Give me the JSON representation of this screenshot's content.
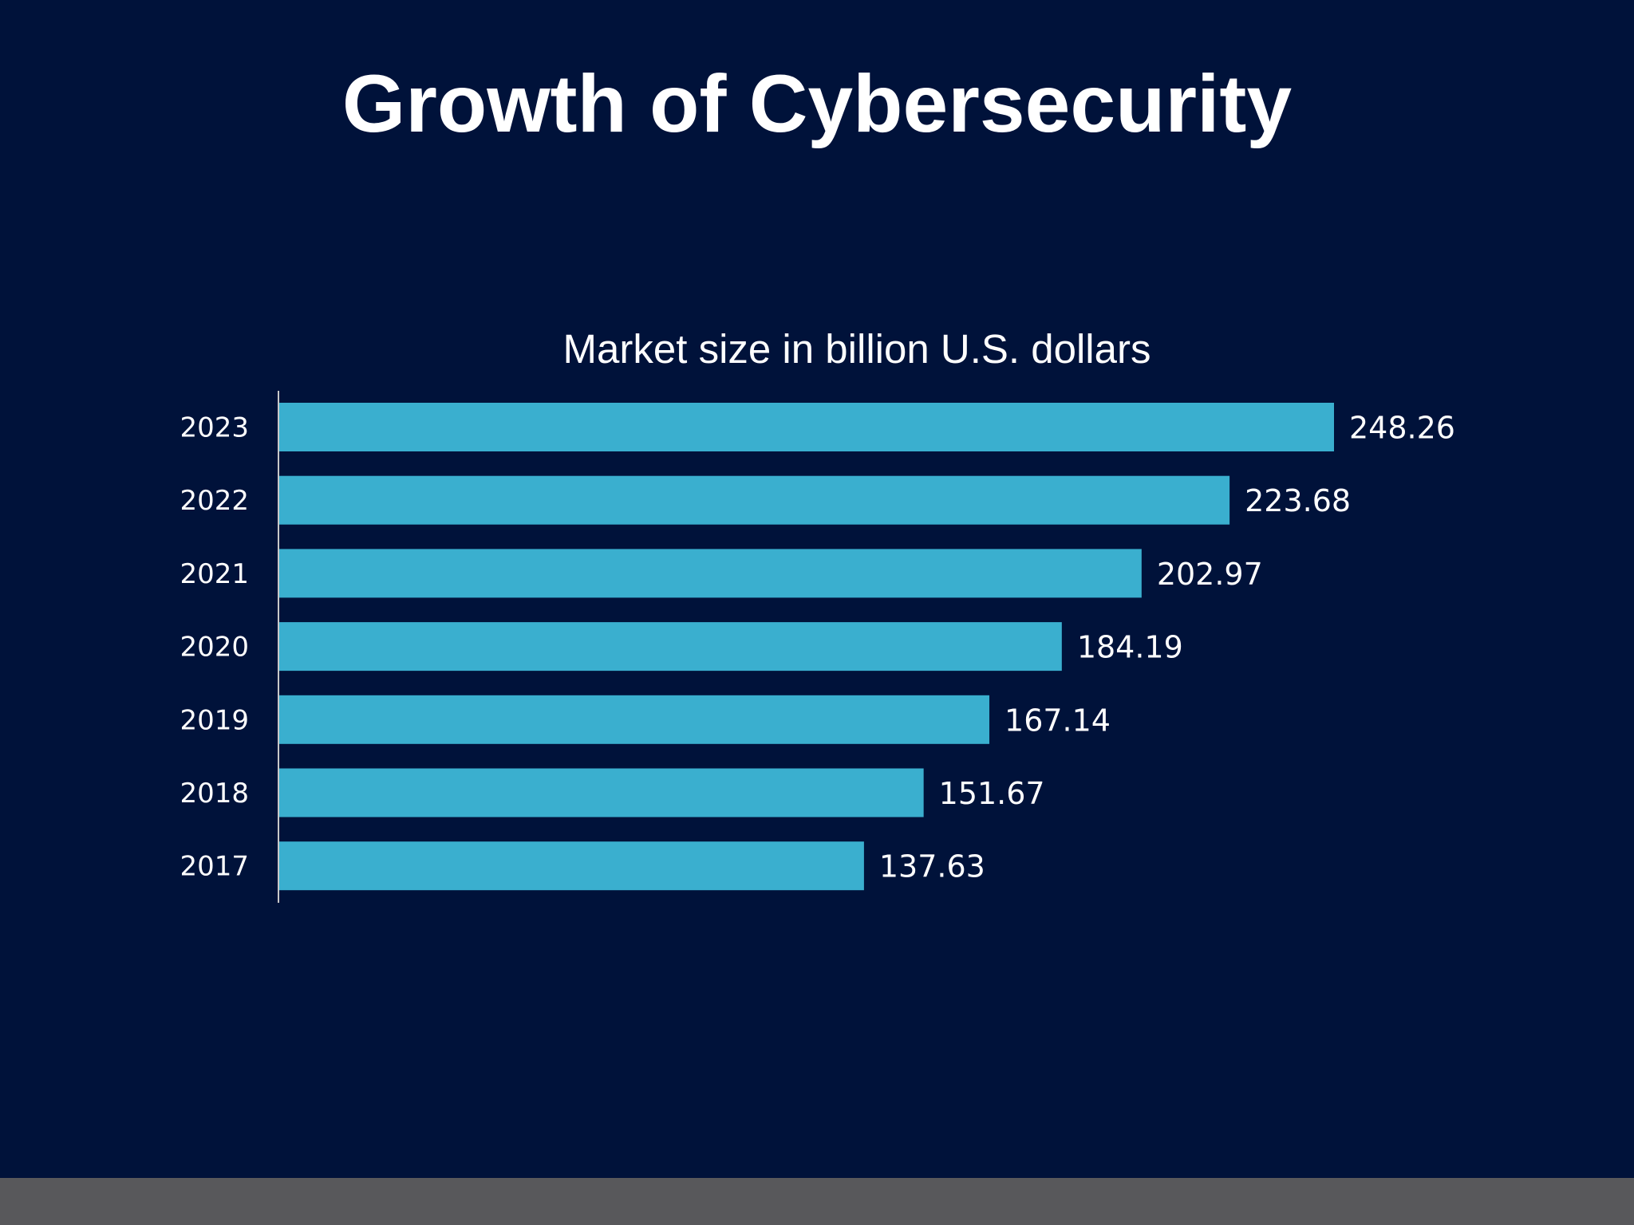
{
  "slide": {
    "title": "Growth of Cybersecurity"
  },
  "colors": {
    "background": "#00123a",
    "bar": "#3aafcf",
    "text": "#ffffff",
    "axis": "#c8c8c8",
    "footer": "#58585b"
  },
  "chart_data": {
    "type": "bar",
    "orientation": "horizontal",
    "title": "Market size in billion U.S. dollars",
    "categories": [
      "2023",
      "2022",
      "2021",
      "2020",
      "2019",
      "2018",
      "2017"
    ],
    "values": [
      248.26,
      223.68,
      202.97,
      184.19,
      167.14,
      151.67,
      137.63
    ],
    "value_labels": [
      "248.26",
      "223.68",
      "202.97",
      "184.19",
      "167.14",
      "151.67",
      "137.63"
    ],
    "xlim": [
      0,
      248.26
    ],
    "grid": false,
    "legend": "none"
  }
}
